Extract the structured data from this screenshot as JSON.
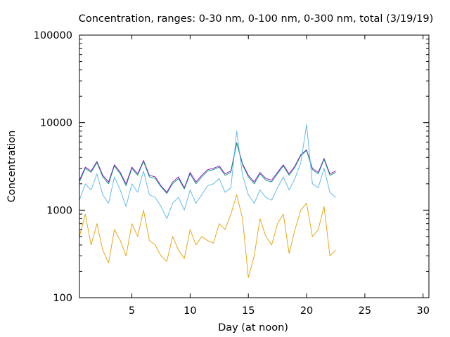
{
  "chart_data": {
    "type": "line",
    "title": "Concentration, ranges: 0-30 nm, 0-100 nm, 0-300 nm, total (3/19/19)",
    "xlabel": "Day (at noon)",
    "ylabel": "Concentration",
    "xlim": [
      0.5,
      30.5
    ],
    "ylim": [
      100,
      100000
    ],
    "yscale": "log",
    "grid": false,
    "legend": "none",
    "x_ticks": [
      5,
      10,
      15,
      20,
      25,
      30
    ],
    "x_tick_labels": [
      "5",
      "10",
      "15",
      "20",
      "25",
      "30"
    ],
    "y_ticks": [
      100,
      1000,
      10000,
      100000
    ],
    "y_tick_labels": [
      "100",
      "1000",
      "10000",
      "100000"
    ],
    "series": [
      {
        "color": "#9400d3",
        "x": [
          0.5,
          1,
          1.5,
          2,
          2.5,
          3,
          3.5,
          4,
          4.5,
          5,
          5.5,
          6,
          6.5,
          7,
          7.5,
          8,
          8.5,
          9,
          9.5,
          10,
          10.5,
          11,
          11.5,
          12,
          12.5,
          13,
          13.5,
          14,
          14.5,
          15,
          15.5,
          16,
          16.5,
          17,
          17.5,
          18,
          18.5,
          19,
          19.5,
          20,
          20.5,
          21,
          21.5,
          22,
          22.5
        ],
        "values": [
          2200,
          3100,
          2800,
          3600,
          2500,
          2100,
          3300,
          2700,
          2000,
          3100,
          2600,
          3700,
          2500,
          2400,
          1900,
          1600,
          2100,
          2400,
          1800,
          2700,
          2100,
          2500,
          2900,
          3000,
          3200,
          2600,
          2800,
          5900,
          3400,
          2500,
          2100,
          2700,
          2300,
          2200,
          2700,
          3300,
          2600,
          3200,
          4300,
          4900,
          3000,
          2700,
          3900,
          2600,
          2800
        ]
      },
      {
        "color": "#009e73",
        "x": [
          0.5,
          1,
          1.5,
          2,
          2.5,
          3,
          3.5,
          4,
          4.5,
          5,
          5.5,
          6,
          6.5,
          7,
          7.5,
          8,
          8.5,
          9,
          9.5,
          10,
          10.5,
          11,
          11.5,
          12,
          12.5,
          13,
          13.5,
          14,
          14.5,
          15,
          15.5,
          16,
          16.5,
          17,
          17.5,
          18,
          18.5,
          19,
          19.5,
          20,
          20.5,
          21,
          21.5,
          22,
          22.5
        ],
        "values": [
          2100,
          3000,
          2700,
          3500,
          2400,
          2000,
          3200,
          2600,
          1900,
          3000,
          2500,
          3600,
          2400,
          2300,
          1850,
          1550,
          2000,
          2300,
          1750,
          2600,
          2000,
          2400,
          2800,
          2900,
          3100,
          2500,
          2700,
          5800,
          3300,
          2400,
          2000,
          2600,
          2200,
          2100,
          2600,
          3200,
          2500,
          3100,
          4200,
          4800,
          2900,
          2600,
          3800,
          2500,
          2700
        ]
      },
      {
        "color": "#56b4e9",
        "x": [
          0.5,
          1,
          1.5,
          2,
          2.5,
          3,
          3.5,
          4,
          4.5,
          5,
          5.5,
          6,
          6.5,
          7,
          7.5,
          8,
          8.5,
          9,
          9.5,
          10,
          10.5,
          11,
          11.5,
          12,
          12.5,
          13,
          13.5,
          14,
          14.5,
          15,
          15.5,
          16,
          16.5,
          17,
          17.5,
          18,
          18.5,
          19,
          19.5,
          20,
          20.5,
          21,
          21.5,
          22,
          22.5
        ],
        "values": [
          1300,
          2000,
          1700,
          2600,
          1500,
          1200,
          2400,
          1700,
          1100,
          2000,
          1600,
          2800,
          1500,
          1400,
          1100,
          800,
          1200,
          1400,
          1000,
          1700,
          1200,
          1500,
          1900,
          2000,
          2300,
          1600,
          1800,
          8000,
          2500,
          1500,
          1200,
          1700,
          1400,
          1300,
          1800,
          2400,
          1700,
          2300,
          3500,
          9500,
          2000,
          1800,
          3000,
          1600,
          1400
        ]
      },
      {
        "color": "#e69f00",
        "x": [
          0.5,
          1,
          1.5,
          2,
          2.5,
          3,
          3.5,
          4,
          4.5,
          5,
          5.5,
          6,
          6.5,
          7,
          7.5,
          8,
          8.5,
          9,
          9.5,
          10,
          10.5,
          11,
          11.5,
          12,
          12.5,
          13,
          13.5,
          14,
          14.5,
          15,
          15.5,
          16,
          16.5,
          17,
          17.5,
          18,
          18.5,
          19,
          19.5,
          20,
          20.5,
          21,
          21.5,
          22,
          22.5
        ],
        "values": [
          500,
          900,
          400,
          700,
          350,
          250,
          600,
          450,
          300,
          700,
          500,
          1000,
          450,
          400,
          300,
          260,
          500,
          350,
          280,
          600,
          400,
          500,
          450,
          420,
          700,
          600,
          900,
          1500,
          800,
          170,
          300,
          800,
          500,
          400,
          700,
          900,
          320,
          600,
          1000,
          1200,
          500,
          600,
          1100,
          300,
          350
        ]
      }
    ]
  }
}
